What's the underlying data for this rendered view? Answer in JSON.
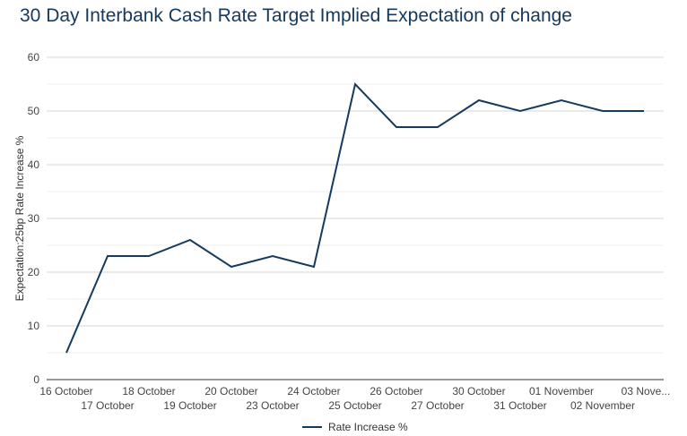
{
  "chart_data": {
    "type": "line",
    "title": "30 Day Interbank Cash Rate Target Implied Expectation of change",
    "xlabel": "",
    "ylabel": "Expectation:25bp Rate Increase %",
    "ylim": [
      0,
      60
    ],
    "yticks": [
      0,
      10,
      20,
      30,
      40,
      50,
      60
    ],
    "grid": true,
    "legend_position": "bottom-center",
    "categories": [
      "16 October",
      "17 October",
      "18 October",
      "19 October",
      "20 October",
      "23 October",
      "24 October",
      "25 October",
      "26 October",
      "27 October",
      "30 October",
      "31 October",
      "01 November",
      "02 November",
      "03 Nove..."
    ],
    "series": [
      {
        "name": "Rate Increase %",
        "color": "#153a60",
        "values": [
          5,
          23,
          23,
          26,
          21,
          23,
          21,
          55,
          47,
          47,
          52,
          50,
          52,
          50,
          50
        ]
      }
    ]
  }
}
